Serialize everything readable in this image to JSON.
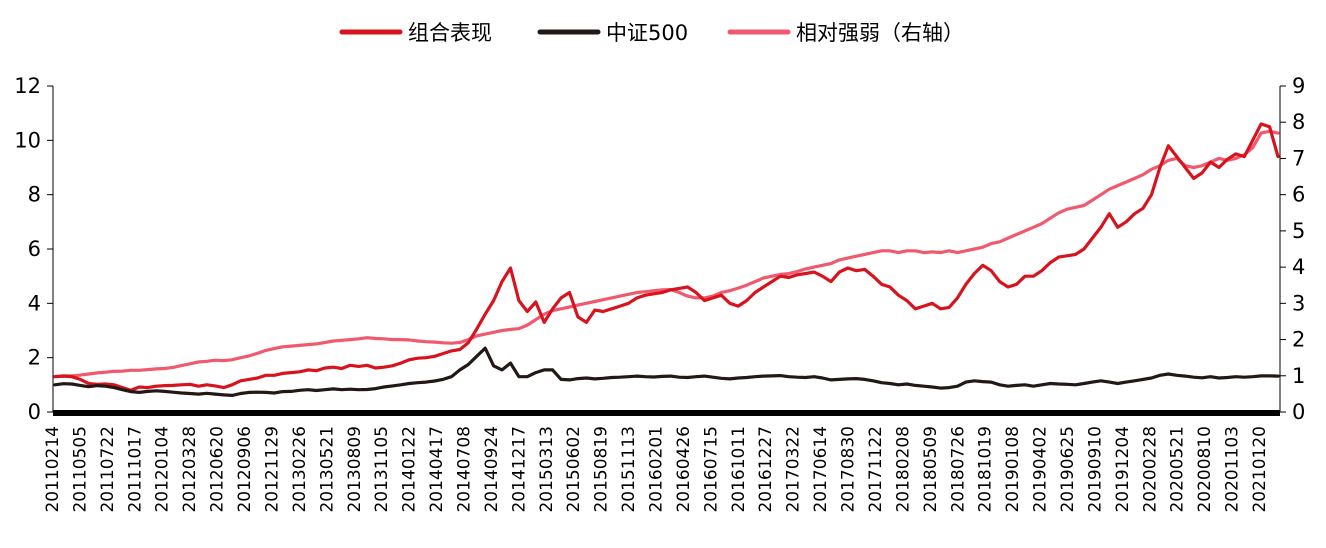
{
  "chart_data": {
    "type": "line",
    "title": "",
    "xlabel": "",
    "ylabel": "",
    "legend": {
      "placement": "top-center"
    },
    "grid": false,
    "y_left": {
      "range": [
        0,
        12
      ],
      "ticks": [
        "0",
        "2",
        "4",
        "6",
        "8",
        "10",
        "12"
      ]
    },
    "y_right": {
      "range": [
        0,
        9
      ],
      "ticks": [
        "0",
        "1",
        "2",
        "3",
        "4",
        "5",
        "6",
        "7",
        "8",
        "9"
      ]
    },
    "x_tick_labels": [
      "20110214",
      "20110505",
      "20110722",
      "20111017",
      "20120104",
      "20120328",
      "20120620",
      "20120906",
      "20121129",
      "20130226",
      "20130521",
      "20130809",
      "20131105",
      "20140122",
      "20140417",
      "20140708",
      "20140924",
      "20141217",
      "20150313",
      "20150602",
      "20150819",
      "20151113",
      "20160201",
      "20160426",
      "20160715",
      "20161011",
      "20161227",
      "20170322",
      "20170614",
      "20170830",
      "20171122",
      "20180208",
      "20180509",
      "20180726",
      "20181019",
      "20190108",
      "20190402",
      "20190625",
      "20190910",
      "20191204",
      "20200228",
      "20200521",
      "20200810",
      "20201103",
      "20210120"
    ],
    "series": [
      {
        "name": "组合表现",
        "axis": "left",
        "color": "#d7141e",
        "values": [
          1.3,
          1.32,
          1.3,
          1.2,
          1.05,
          1.02,
          1.03,
          1.0,
          0.9,
          0.8,
          0.92,
          0.9,
          0.95,
          0.97,
          0.98,
          1.0,
          1.02,
          0.95,
          1.0,
          0.96,
          0.9,
          1.0,
          1.15,
          1.2,
          1.25,
          1.35,
          1.35,
          1.42,
          1.45,
          1.48,
          1.55,
          1.52,
          1.62,
          1.65,
          1.6,
          1.72,
          1.68,
          1.72,
          1.62,
          1.65,
          1.7,
          1.8,
          1.92,
          1.98,
          2.0,
          2.05,
          2.15,
          2.25,
          2.3,
          2.55,
          3.05,
          3.6,
          4.1,
          4.8,
          5.3,
          4.1,
          3.7,
          4.05,
          3.3,
          3.8,
          4.2,
          4.4,
          3.5,
          3.3,
          3.75,
          3.7,
          3.8,
          3.9,
          4.0,
          4.2,
          4.3,
          4.35,
          4.4,
          4.5,
          4.55,
          4.6,
          4.4,
          4.1,
          4.2,
          4.3,
          4.0,
          3.9,
          4.1,
          4.4,
          4.6,
          4.8,
          5.0,
          4.95,
          5.05,
          5.1,
          5.15,
          5.0,
          4.8,
          5.15,
          5.3,
          5.2,
          5.25,
          5.0,
          4.7,
          4.6,
          4.3,
          4.1,
          3.8,
          3.9,
          4.0,
          3.8,
          3.85,
          4.2,
          4.7,
          5.1,
          5.4,
          5.2,
          4.8,
          4.6,
          4.7,
          5.0,
          5.0,
          5.2,
          5.5,
          5.7,
          5.75,
          5.8,
          6.0,
          6.4,
          6.8,
          7.3,
          6.8,
          7.0,
          7.3,
          7.5,
          8.0,
          9.0,
          9.8,
          9.4,
          9.0,
          8.6,
          8.8,
          9.2,
          9.0,
          9.3,
          9.5,
          9.4,
          10.0,
          10.6,
          10.5,
          9.4
        ]
      },
      {
        "name": "中证500",
        "axis": "left",
        "color": "#231815",
        "values": [
          1.0,
          1.04,
          1.03,
          0.98,
          0.93,
          0.97,
          0.95,
          0.9,
          0.82,
          0.75,
          0.72,
          0.76,
          0.78,
          0.76,
          0.73,
          0.7,
          0.68,
          0.66,
          0.69,
          0.66,
          0.63,
          0.61,
          0.68,
          0.72,
          0.73,
          0.72,
          0.7,
          0.75,
          0.76,
          0.8,
          0.82,
          0.79,
          0.82,
          0.85,
          0.82,
          0.84,
          0.82,
          0.83,
          0.86,
          0.92,
          0.96,
          1.0,
          1.05,
          1.08,
          1.1,
          1.14,
          1.2,
          1.3,
          1.55,
          1.75,
          2.05,
          2.35,
          1.7,
          1.55,
          1.8,
          1.3,
          1.3,
          1.45,
          1.55,
          1.55,
          1.2,
          1.18,
          1.23,
          1.25,
          1.22,
          1.24,
          1.27,
          1.28,
          1.3,
          1.32,
          1.3,
          1.29,
          1.31,
          1.32,
          1.28,
          1.27,
          1.3,
          1.32,
          1.28,
          1.24,
          1.22,
          1.25,
          1.27,
          1.3,
          1.32,
          1.33,
          1.34,
          1.3,
          1.28,
          1.27,
          1.3,
          1.25,
          1.18,
          1.2,
          1.22,
          1.23,
          1.2,
          1.15,
          1.08,
          1.05,
          1.0,
          1.03,
          0.98,
          0.95,
          0.92,
          0.88,
          0.9,
          0.95,
          1.1,
          1.15,
          1.12,
          1.1,
          1.0,
          0.95,
          0.98,
          1.0,
          0.95,
          1.0,
          1.05,
          1.03,
          1.02,
          1.0,
          1.05,
          1.1,
          1.15,
          1.1,
          1.05,
          1.1,
          1.15,
          1.2,
          1.25,
          1.35,
          1.4,
          1.35,
          1.32,
          1.28,
          1.26,
          1.3,
          1.25,
          1.27,
          1.3,
          1.28,
          1.3,
          1.33,
          1.33,
          1.32
        ]
      },
      {
        "name": "相对强弱（右轴）",
        "axis": "right",
        "color": "#f05a6e",
        "values": [
          0.98,
          1.0,
          1.0,
          1.02,
          1.05,
          1.08,
          1.1,
          1.12,
          1.13,
          1.15,
          1.15,
          1.17,
          1.19,
          1.2,
          1.23,
          1.28,
          1.33,
          1.38,
          1.4,
          1.43,
          1.42,
          1.44,
          1.5,
          1.55,
          1.62,
          1.7,
          1.75,
          1.8,
          1.82,
          1.84,
          1.86,
          1.88,
          1.92,
          1.96,
          1.98,
          2.0,
          2.02,
          2.05,
          2.03,
          2.02,
          2.0,
          2.0,
          1.99,
          1.96,
          1.94,
          1.93,
          1.91,
          1.9,
          1.92,
          2.0,
          2.1,
          2.15,
          2.2,
          2.25,
          2.28,
          2.3,
          2.4,
          2.55,
          2.7,
          2.8,
          2.85,
          2.9,
          2.95,
          3.0,
          3.05,
          3.1,
          3.15,
          3.2,
          3.25,
          3.3,
          3.32,
          3.35,
          3.37,
          3.38,
          3.3,
          3.2,
          3.15,
          3.15,
          3.2,
          3.3,
          3.35,
          3.42,
          3.5,
          3.6,
          3.7,
          3.75,
          3.8,
          3.82,
          3.88,
          3.95,
          4.0,
          4.05,
          4.1,
          4.2,
          4.25,
          4.3,
          4.35,
          4.4,
          4.45,
          4.45,
          4.4,
          4.45,
          4.45,
          4.4,
          4.42,
          4.4,
          4.45,
          4.4,
          4.45,
          4.5,
          4.55,
          4.65,
          4.7,
          4.8,
          4.9,
          5.0,
          5.1,
          5.2,
          5.35,
          5.5,
          5.6,
          5.65,
          5.7,
          5.85,
          6.0,
          6.15,
          6.25,
          6.35,
          6.45,
          6.55,
          6.7,
          6.8,
          6.95,
          7.0,
          6.8,
          6.75,
          6.8,
          6.9,
          7.0,
          6.95,
          7.0,
          7.1,
          7.3,
          7.7,
          7.75,
          7.7
        ]
      }
    ]
  }
}
